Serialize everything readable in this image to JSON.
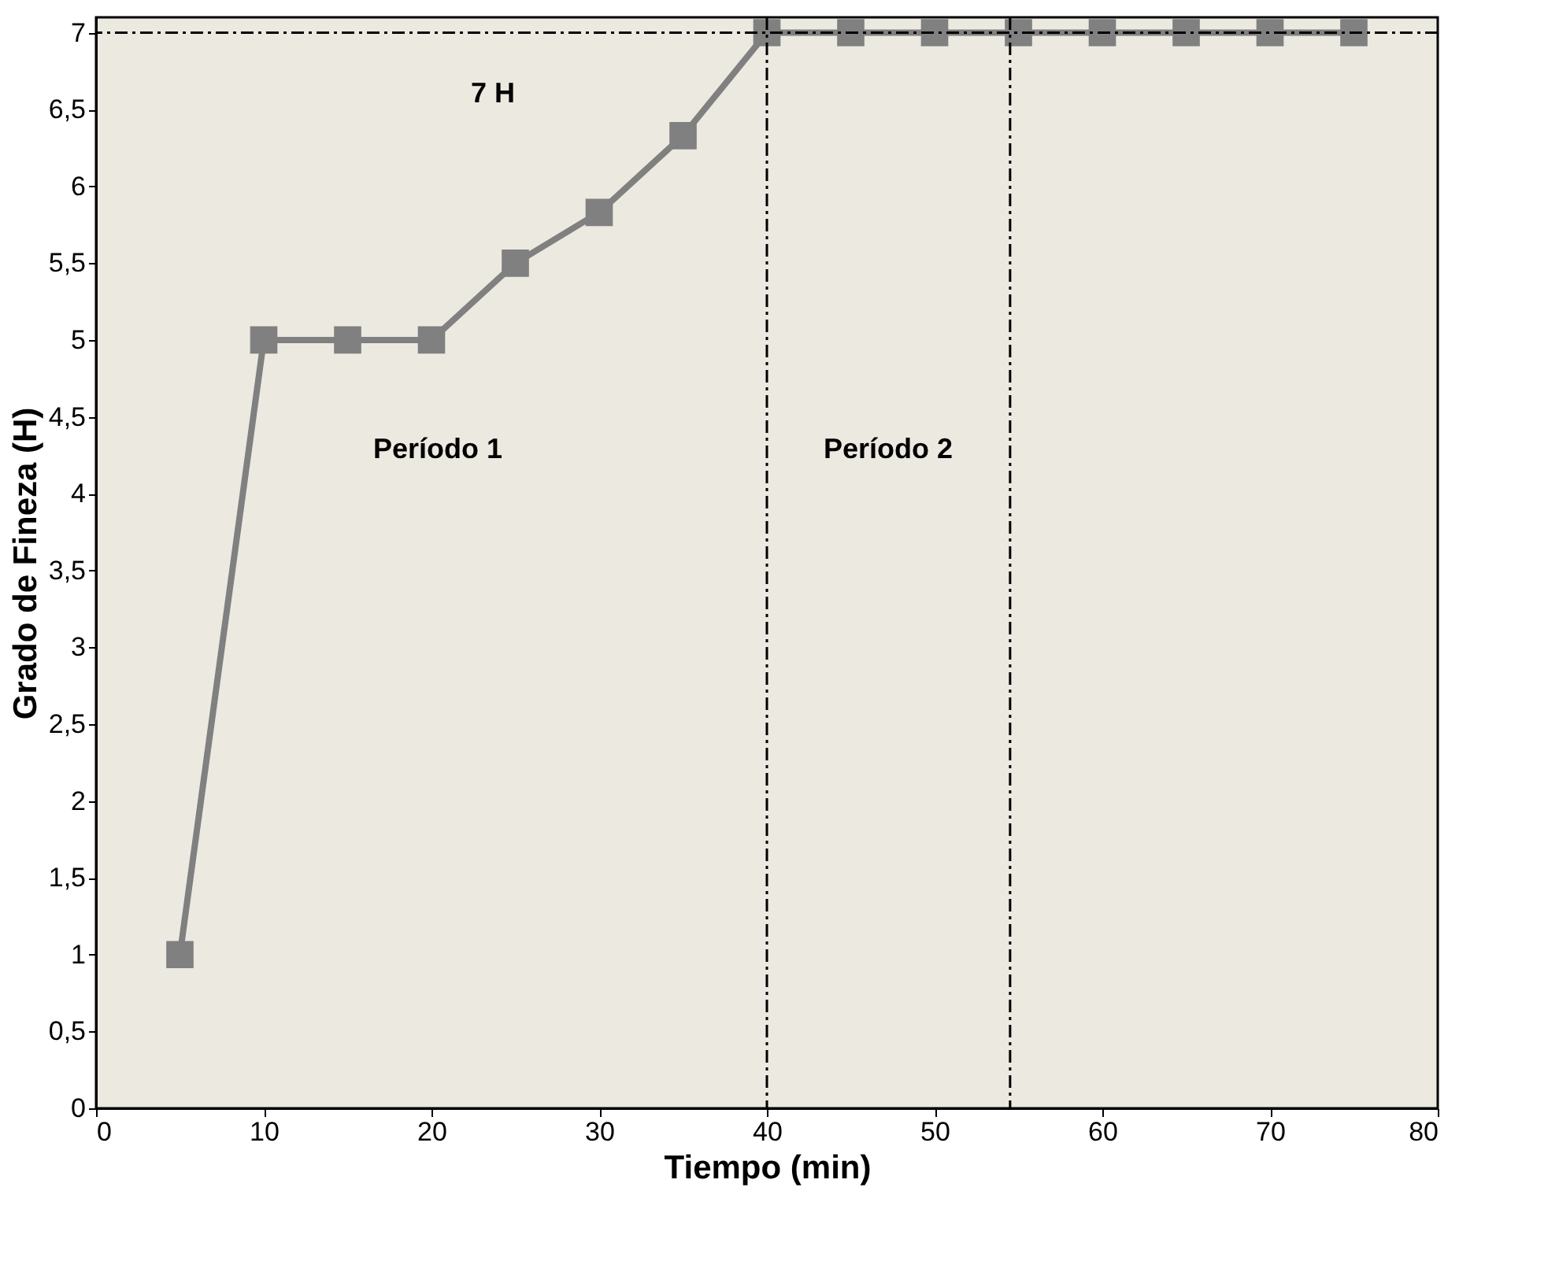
{
  "chart_data": {
    "type": "line",
    "xlabel": "Tiempo (min)",
    "ylabel": "Grado de Fineza (H)",
    "x": [
      5,
      10,
      15,
      20,
      25,
      30,
      35,
      40,
      45,
      50,
      55,
      60,
      65,
      70,
      75
    ],
    "series": [
      {
        "color": "#808080",
        "values": [
          1,
          5,
          5,
          5,
          5.5,
          5.83,
          6.33,
          7,
          7,
          7,
          7,
          7,
          7,
          7,
          7
        ]
      }
    ],
    "xlim": [
      0,
      80
    ],
    "xticks": [
      0,
      10,
      20,
      30,
      40,
      50,
      60,
      70,
      80
    ],
    "ylim": [
      0,
      7.1
    ],
    "yticks": [
      0,
      {
        "value": 0.5,
        "label": "0,5"
      },
      1,
      {
        "value": 1.5,
        "label": "1,5"
      },
      2,
      {
        "value": 2.5,
        "label": "2,5"
      },
      3,
      {
        "value": 3.5,
        "label": "3,5"
      },
      4,
      {
        "value": 4.5,
        "label": "4,5"
      },
      5,
      {
        "value": 5.5,
        "label": "5,5"
      },
      6,
      {
        "value": 6.5,
        "label": "6,5"
      },
      7
    ],
    "ref_lines": [
      {
        "axis": "y",
        "value": 7,
        "color": "#000000",
        "line_style": "dashdot"
      },
      {
        "axis": "x",
        "value": 40,
        "color": "#000000",
        "line_style": "dashdot"
      },
      {
        "axis": "x",
        "value": 54.5,
        "color": "#000000",
        "line_style": "dashdot"
      }
    ],
    "annotations": [
      "7 H",
      "Período 1",
      "Período 2"
    ],
    "marker": "square",
    "line_style": "solid",
    "grid": false
  }
}
